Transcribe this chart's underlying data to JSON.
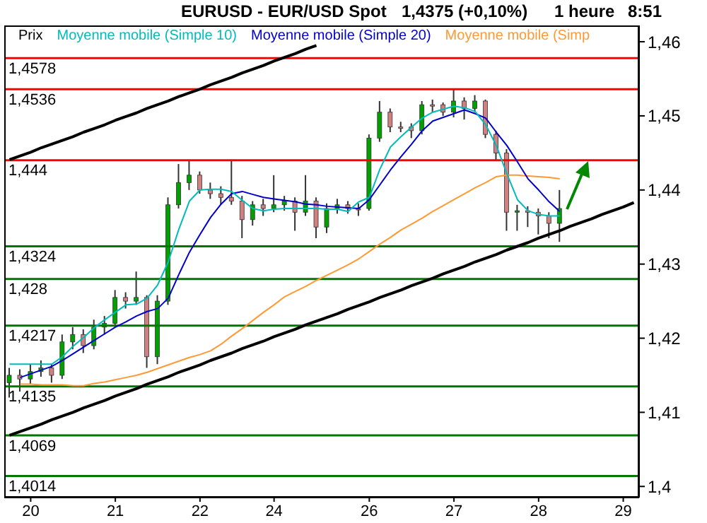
{
  "chart_data": {
    "type": "candlestick",
    "title": "EURUSD - EUR/USD Spot",
    "subtitle": "1,4375 (+0,10%)",
    "annotations": [
      "1 heure",
      "8:51"
    ],
    "ylabel": "Prix",
    "legend": "top left",
    "marker": "none",
    "line_style": "solid",
    "categories": [
      null,
      null,
      "20",
      null,
      null,
      null,
      null,
      null,
      null,
      null,
      "21",
      null,
      null,
      null,
      null,
      null,
      null,
      null,
      "22",
      null,
      null,
      null,
      null,
      null,
      null,
      "24",
      null,
      null,
      null,
      null,
      null,
      null,
      null,
      null,
      "26",
      null,
      null,
      null,
      null,
      null,
      null,
      null,
      "27",
      null,
      null,
      null,
      null,
      null,
      null,
      null,
      "28",
      null,
      null,
      null,
      null,
      null,
      null,
      null,
      "29",
      null
    ],
    "ylim": [
      1.3985,
      1.4622
    ],
    "yticks": [
      {
        "value": 1.4,
        "label": "1,4"
      },
      {
        "value": 1.41,
        "label": "1,41"
      },
      {
        "value": 1.42,
        "label": "1,42"
      },
      {
        "value": 1.43,
        "label": "1,43"
      },
      {
        "value": 1.44,
        "label": "1,44"
      },
      {
        "value": 1.45,
        "label": "1,45"
      },
      {
        "value": 1.46,
        "label": "1,46"
      }
    ],
    "ref_lines": [
      {
        "axis": "y",
        "value": 1.4578,
        "label": "1,4578",
        "color": "#ff0000"
      },
      {
        "axis": "y",
        "value": 1.4536,
        "label": "1,4536",
        "color": "#ff0000"
      },
      {
        "axis": "y",
        "value": 1.444,
        "label": "1,444",
        "color": "#ff0000"
      },
      {
        "axis": "y",
        "value": 1.4324,
        "label": "1,4324",
        "color": "#007700"
      },
      {
        "axis": "y",
        "value": 1.428,
        "label": "1,428",
        "color": "#007700"
      },
      {
        "axis": "y",
        "value": 1.4217,
        "label": "1,4217",
        "color": "#007700"
      },
      {
        "axis": "y",
        "value": 1.4135,
        "label": "1,4135",
        "color": "#007700"
      },
      {
        "axis": "y",
        "value": 1.4069,
        "label": "1,4069",
        "color": "#007700"
      },
      {
        "axis": "y",
        "value": 1.4014,
        "label": "1,4014",
        "color": "#007700"
      }
    ],
    "series": [
      {
        "type": "line",
        "color": "#000000",
        "values": [
          1.4069,
          1.4074,
          1.4079,
          1.4084,
          1.409,
          1.4095,
          1.41,
          1.4106,
          1.4111,
          1.4116,
          1.4122,
          1.4127,
          1.4132,
          1.4138,
          1.4143,
          1.4148,
          1.4154,
          1.4159,
          1.4164,
          1.417,
          1.4175,
          1.418,
          1.4186,
          1.4191,
          1.4196,
          1.4202,
          1.4207,
          1.4212,
          1.4218,
          1.4223,
          1.4228,
          1.4233,
          1.4239,
          1.4244,
          1.4249,
          1.4255,
          1.426,
          1.4265,
          1.4271,
          1.4276,
          1.4281,
          1.4287,
          1.4292,
          1.4297,
          1.4303,
          1.4308,
          1.4313,
          1.4319,
          1.4324,
          1.4329,
          1.4335,
          1.434,
          1.4345,
          1.4351,
          1.4356,
          1.4361,
          1.4367,
          1.4372,
          1.4377,
          1.4383
        ]
      },
      {
        "type": "line",
        "color": "#000000",
        "values": [
          1.4441,
          1.4446,
          1.4451,
          1.4457,
          1.4462,
          1.4467,
          1.4472,
          1.4478,
          1.4483,
          1.4488,
          1.4494,
          1.4499,
          1.4504,
          1.451,
          1.4515,
          1.452,
          1.4526,
          1.4531,
          1.4536,
          1.4542,
          1.4547,
          1.4552,
          1.4558,
          1.4563,
          1.4568,
          1.4574,
          1.4579,
          1.4584,
          1.459,
          1.4595,
          null,
          null,
          null,
          null,
          null,
          null,
          null,
          null,
          null,
          null,
          null,
          null,
          null,
          null,
          null,
          null,
          null,
          null,
          null,
          null,
          null,
          null,
          null,
          null,
          null,
          null,
          null,
          null,
          null,
          null
        ]
      },
      {
        "type": "line",
        "name": "Moyenne mobile (Simp",
        "color": "#ff9933",
        "values": [
          null,
          1.4138,
          1.4138,
          1.4137,
          1.4137,
          1.4137,
          1.4136,
          1.4136,
          1.4139,
          1.4141,
          1.4144,
          1.4147,
          1.415,
          1.4154,
          1.4159,
          1.4164,
          1.4169,
          1.4174,
          1.4178,
          1.4183,
          1.4192,
          1.4203,
          1.4213,
          1.4224,
          1.4235,
          1.4245,
          1.4256,
          1.4263,
          1.427,
          1.4278,
          1.4285,
          1.4292,
          1.4299,
          1.4307,
          1.4317,
          1.4327,
          1.4336,
          1.4346,
          1.4354,
          1.4362,
          1.4371,
          1.4379,
          1.4387,
          1.4395,
          1.4403,
          1.441,
          1.4418,
          1.442,
          1.442,
          1.4419,
          1.4418,
          1.4417,
          1.4415,
          null,
          null,
          null,
          null,
          null,
          null,
          null
        ]
      },
      {
        "type": "line",
        "name": "Moyenne mobile (Simple 20)",
        "color": "#0000cc",
        "values": [
          null,
          1.4147,
          1.4152,
          1.4157,
          1.4162,
          1.417,
          1.4179,
          1.4188,
          1.4197,
          1.4206,
          1.4215,
          1.4222,
          1.423,
          1.4236,
          1.424,
          1.4254,
          1.4286,
          1.4316,
          1.434,
          1.4363,
          1.4381,
          1.4395,
          1.4398,
          1.4394,
          1.439,
          1.4388,
          1.4386,
          1.4384,
          1.4381,
          1.438,
          1.4378,
          1.4377,
          1.4376,
          1.4375,
          1.4387,
          1.4407,
          1.4427,
          1.4445,
          1.4462,
          1.448,
          1.4493,
          1.4498,
          1.4503,
          1.4508,
          1.4503,
          1.4497,
          1.4478,
          1.446,
          1.4438,
          1.4415,
          1.44,
          1.4384,
          1.4371,
          null,
          null,
          null,
          null,
          null,
          null,
          null
        ]
      },
      {
        "type": "line",
        "name": "Moyenne mobile (Simple 10)",
        "color": "#00bbbb",
        "values": [
          1.4165,
          1.4165,
          1.4165,
          1.4165,
          1.4165,
          1.4175,
          1.4189,
          1.4201,
          1.4214,
          1.4225,
          1.4235,
          1.4245,
          1.4246,
          1.4254,
          1.4272,
          1.4303,
          1.4347,
          1.4385,
          1.44,
          1.4401,
          1.4401,
          1.4398,
          1.4386,
          1.4375,
          1.4372,
          1.4374,
          1.4375,
          1.4375,
          1.4375,
          1.4375,
          1.4374,
          1.4374,
          1.4371,
          1.4384,
          1.439,
          1.4428,
          1.4458,
          1.4472,
          1.4485,
          1.4497,
          1.4505,
          1.4509,
          1.4513,
          1.4511,
          1.4506,
          1.4488,
          1.446,
          1.4422,
          1.4387,
          1.4372,
          1.4367,
          1.4365,
          1.4365,
          null,
          null,
          null,
          null,
          null,
          null,
          null
        ]
      },
      {
        "ohlc": [
          [
            1.414,
            1.416,
            1.412,
            1.415
          ],
          [
            1.415,
            1.4158,
            1.4128,
            1.4145
          ],
          [
            1.4145,
            1.4165,
            1.4138,
            1.4155
          ],
          [
            1.4155,
            1.417,
            1.4148,
            1.416
          ],
          [
            1.416,
            1.4165,
            1.414,
            1.415
          ],
          [
            1.415,
            1.4205,
            1.4145,
            1.4195
          ],
          [
            1.4195,
            1.4215,
            1.4185,
            1.4205
          ],
          [
            1.4205,
            1.4212,
            1.418,
            1.419
          ],
          [
            1.419,
            1.4225,
            1.4185,
            1.4215
          ],
          [
            1.4215,
            1.423,
            1.4205,
            1.422
          ],
          [
            1.422,
            1.4265,
            1.4215,
            1.4255
          ],
          [
            1.4255,
            1.4262,
            1.424,
            1.425
          ],
          [
            1.425,
            1.429,
            1.4245,
            1.4255
          ],
          [
            1.4255,
            1.4258,
            1.416,
            1.4175
          ],
          [
            1.4175,
            1.4258,
            1.4165,
            1.425
          ],
          [
            1.425,
            1.439,
            1.4245,
            1.438
          ],
          [
            1.438,
            1.4435,
            1.4375,
            1.441
          ],
          [
            1.441,
            1.444,
            1.44,
            1.442
          ],
          [
            1.442,
            1.4425,
            1.4395,
            1.44
          ],
          [
            1.44,
            1.441,
            1.4388,
            1.4395
          ],
          [
            1.4395,
            1.4405,
            1.438,
            1.439
          ],
          [
            1.439,
            1.444,
            1.438,
            1.4385
          ],
          [
            1.4385,
            1.4392,
            1.4335,
            1.436
          ],
          [
            1.436,
            1.4385,
            1.4352,
            1.438
          ],
          [
            1.438,
            1.4388,
            1.4365,
            1.4375
          ],
          [
            1.4375,
            1.442,
            1.437,
            1.438
          ],
          [
            1.438,
            1.4392,
            1.4372,
            1.4385
          ],
          [
            1.4385,
            1.439,
            1.4345,
            1.437
          ],
          [
            1.437,
            1.442,
            1.4365,
            1.4385
          ],
          [
            1.4385,
            1.439,
            1.4335,
            1.435
          ],
          [
            1.435,
            1.4382,
            1.4342,
            1.4375
          ],
          [
            1.4375,
            1.4388,
            1.4368,
            1.438
          ],
          [
            1.438,
            1.4385,
            1.4368,
            1.4375
          ],
          [
            1.4375,
            1.4382,
            1.4365,
            1.4375
          ],
          [
            1.4375,
            1.4475,
            1.4372,
            1.447
          ],
          [
            1.447,
            1.452,
            1.4465,
            1.4505
          ],
          [
            1.4505,
            1.451,
            1.4478,
            1.4485
          ],
          [
            1.4485,
            1.4492,
            1.4478,
            1.4485
          ],
          [
            1.4485,
            1.449,
            1.447,
            1.448
          ],
          [
            1.448,
            1.452,
            1.4475,
            1.4515
          ],
          [
            1.4515,
            1.4522,
            1.4505,
            1.4515
          ],
          [
            1.4515,
            1.4518,
            1.45,
            1.4505
          ],
          [
            1.4505,
            1.4537,
            1.4498,
            1.452
          ],
          [
            1.452,
            1.4525,
            1.4495,
            1.451
          ],
          [
            1.451,
            1.4528,
            1.4505,
            1.452
          ],
          [
            1.452,
            1.4522,
            1.447,
            1.4475
          ],
          [
            1.4475,
            1.448,
            1.444,
            1.445
          ],
          [
            1.445,
            1.4455,
            1.4345,
            1.437
          ],
          [
            1.437,
            1.438,
            1.4345,
            1.4372
          ],
          [
            1.4372,
            1.4378,
            1.435,
            1.437
          ],
          [
            1.437,
            1.4375,
            1.434,
            1.4365
          ],
          [
            1.4365,
            1.437,
            1.4335,
            1.4355
          ],
          [
            1.4355,
            1.44,
            1.433,
            1.4375
          ],
          null,
          null,
          null,
          null,
          null,
          null,
          null
        ],
        "colors": [
          "#00a000",
          "#d08080",
          "#00a000",
          "#00a000",
          "#d08080",
          "#00a000",
          "#00a000",
          "#d08080",
          "#00a000",
          "#00a000",
          "#00a000",
          "#d08080",
          "#00a000",
          "#d08080",
          "#00a000",
          "#00a000",
          "#00a000",
          "#00a000",
          "#d08080",
          "#d08080",
          "#d08080",
          "#d08080",
          "#d08080",
          "#00a000",
          "#d08080",
          "#00a000",
          "#00a000",
          "#d08080",
          "#00a000",
          "#d08080",
          "#00a000",
          "#00a000",
          "#d08080",
          "#d08080",
          "#00a000",
          "#00a000",
          "#d08080",
          "#d08080",
          "#d08080",
          "#00a000",
          "#d08080",
          "#d08080",
          "#00a000",
          "#d08080",
          "#00a000",
          "#d08080",
          "#d08080",
          "#d08080",
          "#00a000",
          "#d08080",
          "#d08080",
          "#d08080",
          "#00a000",
          null,
          null,
          null,
          null,
          null,
          null,
          null
        ]
      }
    ]
  }
}
